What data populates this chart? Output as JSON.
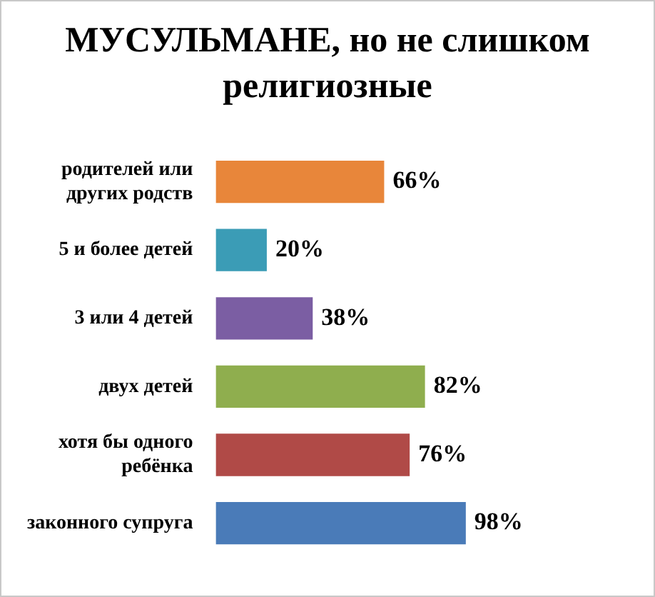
{
  "chart_data": {
    "type": "bar",
    "orientation": "horizontal",
    "title": "МУСУЛЬМАНЕ, но не слишком религиозные",
    "categories": [
      "родителей или других родств",
      "5 и более детей",
      "3 или 4 детей",
      "двух детей",
      "хотя бы одного ребёнка",
      "законного супруга"
    ],
    "values": [
      66,
      20,
      38,
      82,
      76,
      98
    ],
    "colors": [
      "#e8863a",
      "#3b9cb6",
      "#7b5ea3",
      "#8fae4e",
      "#b04a47",
      "#4a7bb8"
    ],
    "value_labels": [
      "66%",
      "20%",
      "38%",
      "82%",
      "76%",
      "98%"
    ],
    "legend": false
  }
}
